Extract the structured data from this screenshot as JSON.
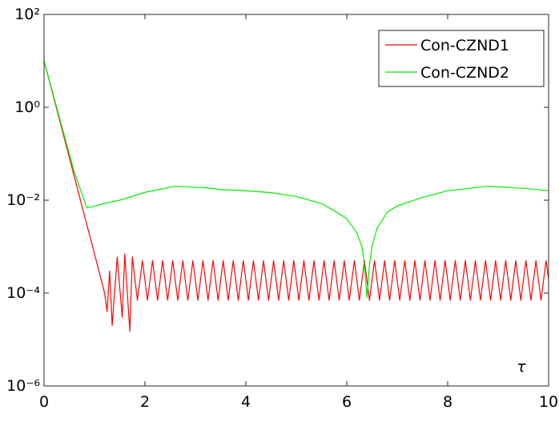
{
  "chart_data": {
    "type": "line",
    "xlabel": "τ",
    "xlim": [
      0,
      10
    ],
    "xticks": [
      0,
      2,
      4,
      6,
      8,
      10
    ],
    "ylim": [
      1e-06,
      100
    ],
    "yscale": "log",
    "yticks": [
      {
        "value": 1e-06,
        "label": "10⁻⁶"
      },
      {
        "value": 0.0001,
        "label": "10⁻⁴"
      },
      {
        "value": 0.01,
        "label": "10⁻²"
      },
      {
        "value": 1,
        "label": "10⁰"
      },
      {
        "value": 100,
        "label": "10²"
      }
    ],
    "legend": "upper right",
    "series": [
      {
        "name": "Con-CZND1",
        "color": "#ff0000",
        "x": [
          0,
          0.2,
          0.4,
          0.6,
          0.8,
          1,
          1.2,
          1.25,
          1.3,
          1.35,
          1.45,
          1.55,
          1.6,
          1.7,
          1.75,
          1.85,
          1.95,
          2.05,
          2.15,
          2.25,
          2.35,
          2.45,
          2.55,
          2.65,
          2.75,
          2.85,
          2.95,
          3.05,
          3.15,
          3.25,
          3.35,
          3.45,
          3.55,
          3.65,
          3.75,
          3.85,
          3.95,
          4.05,
          4.15,
          4.25,
          4.35,
          4.45,
          4.55,
          4.65,
          4.75,
          4.85,
          4.95,
          5.05,
          5.15,
          5.25,
          5.35,
          5.45,
          5.55,
          5.65,
          5.75,
          5.85,
          5.95,
          6.05,
          6.15,
          6.25,
          6.35,
          6.45,
          6.55,
          6.65,
          6.75,
          6.85,
          6.95,
          7.05,
          7.15,
          7.25,
          7.35,
          7.45,
          7.55,
          7.65,
          7.75,
          7.85,
          7.95,
          8.05,
          8.15,
          8.25,
          8.35,
          8.45,
          8.55,
          8.65,
          8.75,
          8.85,
          8.95,
          9.05,
          9.15,
          9.25,
          9.35,
          9.45,
          9.55,
          9.65,
          9.75,
          9.85,
          9.95,
          10
        ],
        "values": [
          10,
          1.5,
          0.22,
          0.032,
          0.0047,
          0.0007,
          0.0001,
          4e-05,
          0.0003,
          2e-05,
          0.0006,
          3e-05,
          0.0007,
          1.5e-05,
          0.0006,
          7e-05,
          0.0005,
          7e-05,
          0.0005,
          7e-05,
          0.0005,
          7e-05,
          0.0005,
          7e-05,
          0.0005,
          7e-05,
          0.0005,
          7e-05,
          0.0005,
          7e-05,
          0.0005,
          7e-05,
          0.0005,
          7e-05,
          0.0005,
          7e-05,
          0.0005,
          7e-05,
          0.0005,
          7e-05,
          0.0005,
          7e-05,
          0.0005,
          7e-05,
          0.0005,
          7e-05,
          0.0005,
          7e-05,
          0.0005,
          7e-05,
          0.0005,
          7e-05,
          0.0005,
          7e-05,
          0.0005,
          7e-05,
          0.0005,
          7e-05,
          0.0005,
          7e-05,
          0.0005,
          7e-05,
          0.0005,
          7e-05,
          0.0005,
          7e-05,
          0.0005,
          7e-05,
          0.0005,
          7e-05,
          0.0005,
          7e-05,
          0.0005,
          7e-05,
          0.0005,
          7e-05,
          0.0005,
          7e-05,
          0.0005,
          7e-05,
          0.0005,
          7e-05,
          0.0005,
          7e-05,
          0.0005,
          7e-05,
          0.0005,
          7e-05,
          0.0005,
          7e-05,
          0.0005,
          7e-05,
          0.0005,
          7e-05,
          0.0005,
          7e-05,
          0.0005,
          0.0002
        ]
      },
      {
        "name": "Con-CZND2",
        "color": "#00ee00",
        "x": [
          0,
          0.2,
          0.4,
          0.6,
          0.85,
          1.2,
          1.5,
          2,
          2.6,
          3.2,
          3.5,
          4,
          4.5,
          5,
          5.5,
          5.8,
          6,
          6.2,
          6.3,
          6.35,
          6.4,
          6.45,
          6.5,
          6.6,
          6.8,
          7,
          7.5,
          8,
          8.8,
          9.5,
          10
        ],
        "values": [
          10,
          1.6,
          0.25,
          0.04,
          0.0068,
          0.0085,
          0.01,
          0.0148,
          0.02,
          0.0185,
          0.017,
          0.016,
          0.0145,
          0.012,
          0.0085,
          0.0055,
          0.004,
          0.002,
          0.001,
          0.0004,
          8e-05,
          0.0004,
          0.001,
          0.0025,
          0.0055,
          0.0075,
          0.0115,
          0.016,
          0.02,
          0.018,
          0.016
        ]
      }
    ]
  }
}
